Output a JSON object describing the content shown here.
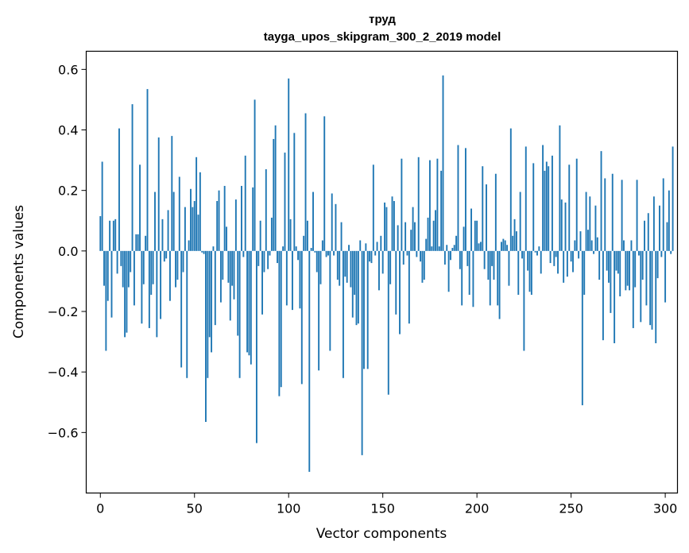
{
  "chart_data": {
    "type": "bar",
    "title": "труд",
    "subtitle": "tayga_upos_skipgram_300_2_2019 model",
    "xlabel": "Vector components",
    "ylabel": "Components values",
    "xlim": [
      -7.5,
      306.5
    ],
    "ylim": [
      -0.8,
      0.66
    ],
    "xticks": [
      0,
      50,
      100,
      150,
      200,
      250,
      300
    ],
    "xtick_labels": [
      "0",
      "50",
      "100",
      "150",
      "200",
      "250",
      "300"
    ],
    "yticks": [
      -0.6,
      -0.4,
      -0.2,
      0.0,
      0.2,
      0.4,
      0.6
    ],
    "ytick_labels": [
      "−0.6",
      "−0.4",
      "−0.2",
      "0.0",
      "0.2",
      "0.4",
      "0.6"
    ],
    "bar_color": "#1f77b4",
    "grid": false,
    "values": [
      0.115,
      0.295,
      -0.115,
      -0.33,
      -0.165,
      0.1,
      -0.22,
      0.1,
      0.105,
      -0.075,
      0.405,
      -0.05,
      -0.12,
      -0.285,
      -0.27,
      -0.12,
      -0.07,
      0.485,
      -0.18,
      0.055,
      0.055,
      0.285,
      -0.24,
      -0.11,
      0.05,
      0.535,
      -0.255,
      -0.145,
      -0.11,
      0.195,
      -0.285,
      0.375,
      -0.225,
      0.105,
      -0.035,
      -0.025,
      0.135,
      -0.165,
      0.38,
      0.195,
      -0.12,
      -0.095,
      0.245,
      -0.385,
      -0.07,
      0.145,
      -0.42,
      0.035,
      0.205,
      0.145,
      0.165,
      0.31,
      0.12,
      0.26,
      -0.005,
      -0.01,
      -0.565,
      -0.42,
      -0.285,
      -0.335,
      0.015,
      -0.245,
      0.165,
      0.2,
      -0.17,
      -0.095,
      0.215,
      0.08,
      -0.105,
      -0.23,
      -0.115,
      -0.16,
      0.17,
      -0.28,
      -0.42,
      0.215,
      -0.02,
      0.315,
      -0.335,
      -0.345,
      -0.375,
      0.21,
      0.5,
      -0.635,
      -0.05,
      0.1,
      -0.21,
      -0.07,
      0.27,
      -0.06,
      -0.015,
      0.11,
      0.37,
      0.415,
      -0.04,
      -0.48,
      -0.45,
      0.015,
      0.325,
      -0.18,
      0.57,
      0.105,
      -0.195,
      0.39,
      0.015,
      -0.03,
      -0.19,
      -0.44,
      0.05,
      0.455,
      0.1,
      -0.73,
      0.01,
      0.195,
      -0.005,
      -0.07,
      -0.395,
      -0.11,
      0.035,
      0.445,
      -0.02,
      -0.015,
      -0.33,
      0.19,
      -0.015,
      0.155,
      -0.095,
      -0.115,
      0.095,
      -0.42,
      -0.085,
      -0.105,
      0.02,
      -0.12,
      -0.22,
      -0.145,
      -0.245,
      -0.24,
      0.035,
      -0.675,
      -0.39,
      0.025,
      -0.39,
      -0.035,
      -0.04,
      0.285,
      -0.015,
      0.03,
      -0.13,
      0.05,
      -0.075,
      0.16,
      0.145,
      -0.475,
      -0.11,
      0.18,
      0.165,
      -0.21,
      0.085,
      -0.275,
      0.305,
      -0.045,
      0.095,
      -0.015,
      -0.24,
      0.07,
      0.145,
      0.095,
      -0.02,
      0.31,
      -0.035,
      -0.105,
      -0.095,
      0.04,
      0.11,
      0.3,
      0.015,
      0.1,
      0.135,
      0.305,
      0.015,
      0.265,
      0.58,
      -0.045,
      0.02,
      -0.135,
      -0.03,
      0.01,
      0.02,
      0.05,
      0.35,
      -0.06,
      -0.18,
      0.08,
      0.34,
      -0.05,
      -0.145,
      0.14,
      -0.185,
      0.1,
      0.1,
      0.025,
      0.03,
      0.28,
      -0.06,
      0.22,
      -0.095,
      -0.18,
      -0.05,
      -0.095,
      0.255,
      -0.18,
      -0.225,
      0.03,
      0.04,
      0.035,
      0.02,
      -0.115,
      0.405,
      0.05,
      0.105,
      0.065,
      -0.145,
      0.195,
      -0.025,
      -0.33,
      0.345,
      -0.065,
      -0.135,
      -0.145,
      0.29,
      -0.005,
      -0.015,
      0.015,
      -0.075,
      0.35,
      0.265,
      0.295,
      0.28,
      -0.04,
      0.315,
      -0.05,
      -0.02,
      -0.075,
      0.415,
      0.17,
      -0.105,
      0.16,
      -0.085,
      0.285,
      -0.035,
      -0.07,
      0.035,
      0.305,
      -0.025,
      0.065,
      -0.51,
      -0.145,
      0.195,
      0.07,
      0.18,
      0.035,
      -0.01,
      0.15,
      0.045,
      -0.095,
      0.33,
      -0.295,
      0.24,
      -0.065,
      -0.105,
      -0.205,
      0.255,
      -0.305,
      -0.065,
      -0.075,
      -0.15,
      0.235,
      0.035,
      -0.13,
      -0.115,
      -0.13,
      0.035,
      -0.255,
      -0.12,
      0.235,
      -0.015,
      -0.235,
      -0.095,
      0.1,
      -0.18,
      0.125,
      -0.245,
      -0.26,
      0.18,
      -0.305,
      -0.09,
      0.15,
      -0.02,
      0.24,
      -0.17,
      0.095,
      0.2,
      -0.01,
      0.345
    ]
  }
}
